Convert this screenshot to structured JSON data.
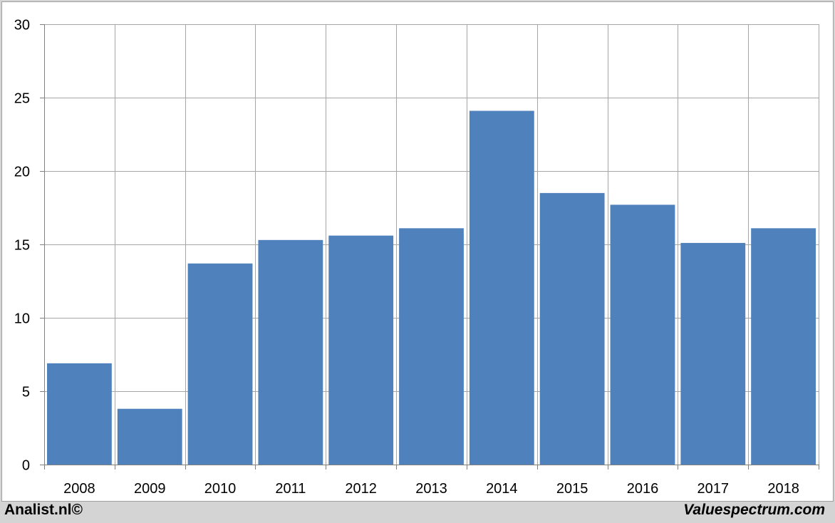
{
  "chart_data": {
    "type": "bar",
    "categories": [
      "2008",
      "2009",
      "2010",
      "2011",
      "2012",
      "2013",
      "2014",
      "2015",
      "2016",
      "2017",
      "2018"
    ],
    "values": [
      6.9,
      3.8,
      13.7,
      15.3,
      15.6,
      16.1,
      24.1,
      18.5,
      17.7,
      15.1,
      16.1
    ],
    "ylim": [
      0,
      30
    ],
    "yticks": [
      0,
      5,
      10,
      15,
      20,
      25,
      30
    ],
    "grid": true,
    "bar_color": "#4f81bd",
    "grid_color": "#a6a6a6"
  },
  "footer": {
    "left": "Analist.nl©",
    "right": "Valuespectrum.com"
  }
}
